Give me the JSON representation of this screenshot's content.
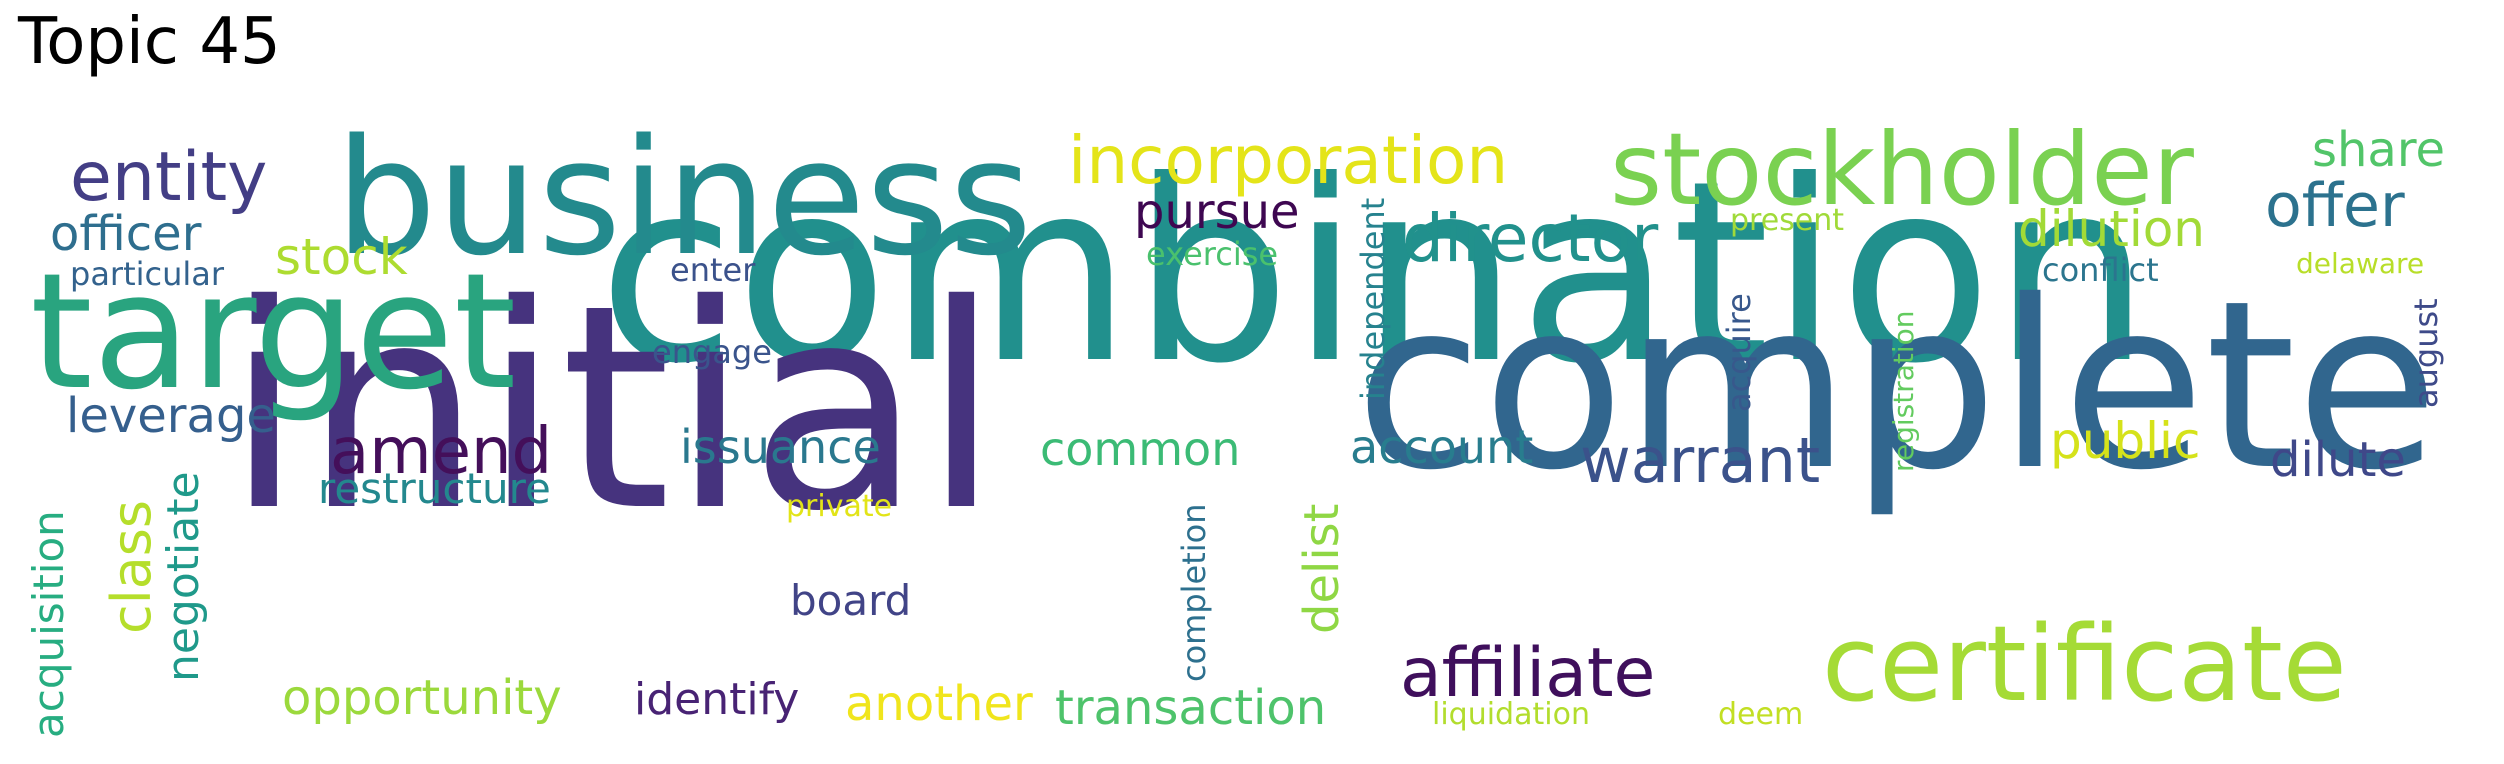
{
  "title": "Topic 45",
  "words": [
    {
      "text": "combination",
      "color": "#21908d"
    },
    {
      "text": "initial",
      "color": "#46337e"
    },
    {
      "text": "complete",
      "color": "#31668e"
    },
    {
      "text": "target",
      "color": "#29a47f"
    },
    {
      "text": "business",
      "color": "#238a8d"
    },
    {
      "text": "stockholder",
      "color": "#7ad151"
    },
    {
      "text": "certificate",
      "color": "#a5db36"
    },
    {
      "text": "incorporation",
      "color": "#e4e419"
    },
    {
      "text": "entity",
      "color": "#433e85"
    },
    {
      "text": "director",
      "color": "#21918c"
    },
    {
      "text": "affiliate",
      "color": "#3f0f5c"
    },
    {
      "text": "warrant",
      "color": "#3b528b"
    },
    {
      "text": "offer",
      "color": "#2c728e"
    },
    {
      "text": "share",
      "color": "#52c569"
    },
    {
      "text": "amend",
      "color": "#440f5a"
    },
    {
      "text": "officer",
      "color": "#2e6e8e"
    },
    {
      "text": "pursue",
      "color": "#3e0751"
    },
    {
      "text": "dilution",
      "color": "#a2da37"
    },
    {
      "text": "stock",
      "color": "#addc30"
    },
    {
      "text": "class",
      "color": "#b5de2b"
    },
    {
      "text": "leverage",
      "color": "#355f8d"
    },
    {
      "text": "issuance",
      "color": "#2a788e"
    },
    {
      "text": "common",
      "color": "#3bbb75"
    },
    {
      "text": "account",
      "color": "#287d8e"
    },
    {
      "text": "public",
      "color": "#d5e21a"
    },
    {
      "text": "dilute",
      "color": "#3f4889"
    },
    {
      "text": "restructure",
      "color": "#23888e"
    },
    {
      "text": "negotiate",
      "color": "#1f998a"
    },
    {
      "text": "acquisition",
      "color": "#27ad81"
    },
    {
      "text": "opportunity",
      "color": "#9bd93c"
    },
    {
      "text": "identify",
      "color": "#482374"
    },
    {
      "text": "another",
      "color": "#f0e51c"
    },
    {
      "text": "transaction",
      "color": "#4ec36b"
    },
    {
      "text": "board",
      "color": "#414487"
    },
    {
      "text": "delist",
      "color": "#8fd744"
    },
    {
      "text": "completion",
      "color": "#2d708e"
    },
    {
      "text": "independent",
      "color": "#26828e"
    },
    {
      "text": "exercise",
      "color": "#4ac16d"
    },
    {
      "text": "present",
      "color": "#a0da39"
    },
    {
      "text": "registration",
      "color": "#63cb5f"
    },
    {
      "text": "acquire",
      "color": "#38588c"
    },
    {
      "text": "conflict",
      "color": "#2b758e"
    },
    {
      "text": "delaware",
      "color": "#b8de29"
    },
    {
      "text": "august",
      "color": "#3e4a89"
    },
    {
      "text": "particular",
      "color": "#33628d"
    },
    {
      "text": "enter",
      "color": "#3b528b"
    },
    {
      "text": "engage",
      "color": "#3a548c"
    },
    {
      "text": "private",
      "color": "#e2e418"
    },
    {
      "text": "liquidation",
      "color": "#b2dd2d"
    },
    {
      "text": "deem",
      "color": "#c2df23"
    }
  ]
}
